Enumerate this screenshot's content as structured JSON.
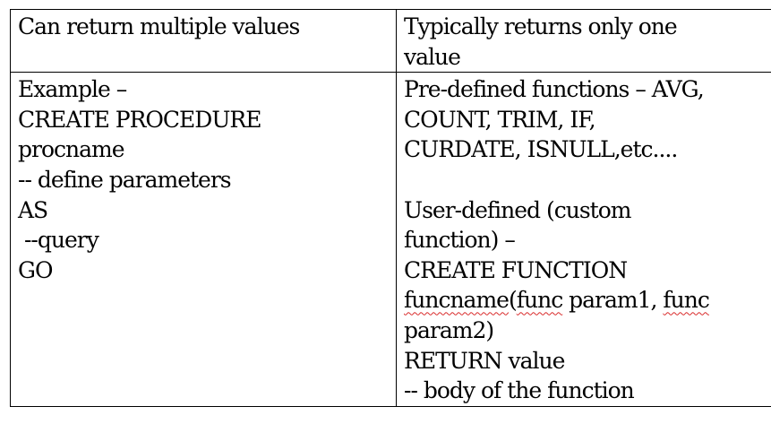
{
  "table": {
    "header": {
      "left": "Can return multiple values",
      "right_lines": [
        "Typically returns only one",
        "value"
      ]
    },
    "body": {
      "left_lines": [
        "Example –",
        "CREATE PROCEDURE",
        "procname",
        "-- define parameters",
        "AS",
        " --query",
        "GO"
      ],
      "right": {
        "predefined_lines": [
          "Pre-defined functions – AVG,",
          "COUNT, TRIM, IF,",
          "CURDATE, ISNULL,etc...."
        ],
        "userdefined_lines": [
          "User-defined (custom",
          "function) –",
          "CREATE FUNCTION"
        ],
        "signature": {
          "name": "funcname",
          "open": "(",
          "param1_a": "func",
          "param1_b": " param1, ",
          "param2_a": "func",
          "continuation": "param2)"
        },
        "tail_lines": [
          "RETURN value",
          "-- body of the function"
        ]
      }
    }
  }
}
